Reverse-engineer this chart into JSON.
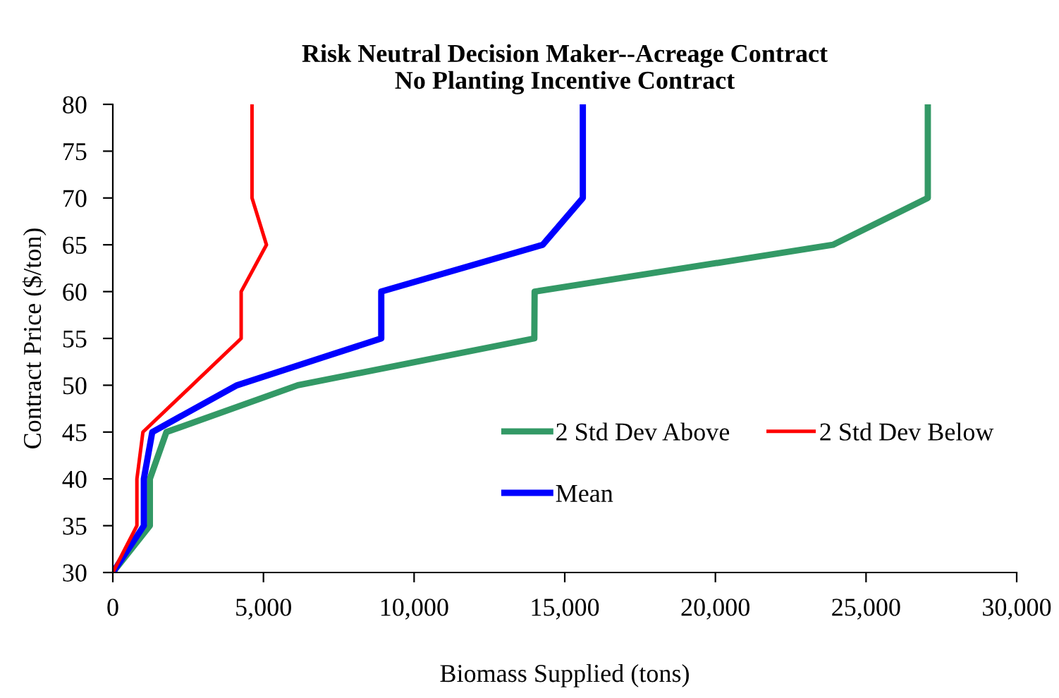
{
  "chart_data": {
    "type": "line",
    "title": "Risk Neutral Decision Maker--Acreage Contract\nNo Planting Incentive Contract",
    "xlabel": "Biomass Supplied (tons)",
    "ylabel": "Contract Price ($/ton)",
    "xlim": [
      0,
      30000
    ],
    "xticks": [
      {
        "value": 0,
        "label": "0"
      },
      {
        "value": 5000,
        "label": "5,000"
      },
      {
        "value": 10000,
        "label": "10,000"
      },
      {
        "value": 15000,
        "label": "15,000"
      },
      {
        "value": 20000,
        "label": "20,000"
      },
      {
        "value": 25000,
        "label": "25,000"
      },
      {
        "value": 30000,
        "label": "30,000"
      }
    ],
    "ylim": [
      30,
      80
    ],
    "yticks": [
      30,
      35,
      40,
      45,
      50,
      55,
      60,
      65,
      70,
      75,
      80
    ],
    "grid": false,
    "legend": "right",
    "marker": "none",
    "line_style": "solid",
    "series": [
      {
        "name": "2 Std Dev Above",
        "color": "#339966",
        "x": [
          0,
          1230,
          1230,
          1780,
          6140,
          13990,
          14000,
          23900,
          27050,
          27050,
          27050
        ],
        "values": [
          30,
          35,
          40,
          45,
          50,
          55,
          60,
          65,
          70,
          75,
          80
        ]
      },
      {
        "name": "Mean",
        "color": "#0000ff",
        "x": [
          0,
          1030,
          1030,
          1310,
          4120,
          8910,
          8910,
          14270,
          15600,
          15600,
          15600
        ],
        "values": [
          30,
          35,
          40,
          45,
          50,
          55,
          60,
          65,
          70,
          75,
          80
        ]
      },
      {
        "name": "2 Std Dev Below",
        "color": "#ff0000",
        "x": [
          0,
          800,
          800,
          1000,
          4260,
          4260,
          5100,
          4620,
          4620,
          4620
        ],
        "values": [
          30,
          35,
          40,
          45,
          55,
          60,
          65,
          70,
          75,
          80
        ]
      }
    ]
  }
}
